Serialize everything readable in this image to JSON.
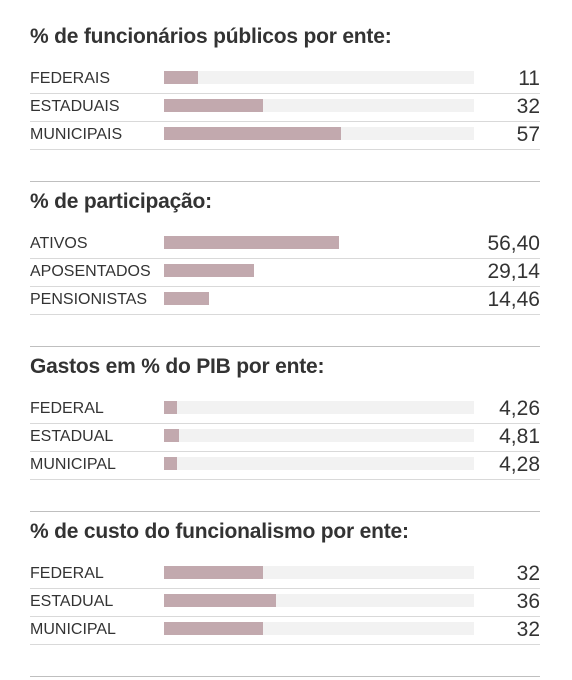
{
  "chart_data": [
    {
      "type": "bar",
      "title": "% de funcionários públicos por ente:",
      "categories": [
        "FEDERAIS",
        "ESTADUAIS",
        "MUNICIPAIS"
      ],
      "values": [
        11,
        32,
        57
      ],
      "value_labels": [
        "11",
        "32",
        "57"
      ],
      "show_track": true,
      "xlim": [
        0,
        100
      ]
    },
    {
      "type": "bar",
      "title": "% de participação:",
      "categories": [
        "ATIVOS",
        "APOSENTADOS",
        "PENSIONISTAS"
      ],
      "values": [
        56.4,
        29.14,
        14.46
      ],
      "value_labels": [
        "56,40",
        "29,14",
        "14,46"
      ],
      "show_track": false,
      "xlim": [
        0,
        100
      ]
    },
    {
      "type": "bar",
      "title": "Gastos em % do PIB por ente:",
      "categories": [
        "FEDERAL",
        "ESTADUAL",
        "MUNICIPAL"
      ],
      "values": [
        4.26,
        4.81,
        4.28
      ],
      "value_labels": [
        "4,26",
        "4,81",
        "4,28"
      ],
      "show_track": true,
      "xlim": [
        0,
        100
      ]
    },
    {
      "type": "bar",
      "title": "% de custo do funcionalismo por ente:",
      "categories": [
        "FEDERAL",
        "ESTADUAL",
        "MUNICIPAL"
      ],
      "values": [
        32,
        36,
        32
      ],
      "value_labels": [
        "32",
        "36",
        "32"
      ],
      "show_track": true,
      "xlim": [
        0,
        100
      ]
    }
  ],
  "colors": {
    "bar": "#c2a9ae",
    "track": "#f2f2f2",
    "row_divider": "#d9d9d9",
    "section_rule": "#bfbfbf",
    "text": "#333333"
  }
}
